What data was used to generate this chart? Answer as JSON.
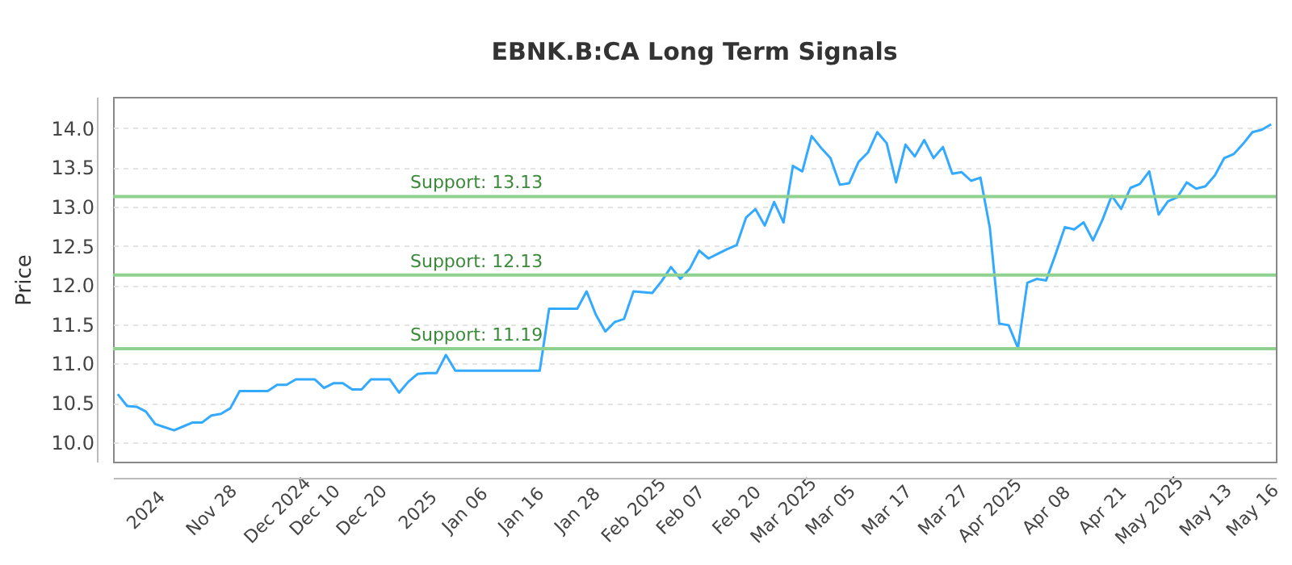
{
  "chart_data": {
    "type": "line",
    "title": "EBNK.B:CA Long Term Signals",
    "ylabel": "Price",
    "categories": [
      null,
      null,
      null,
      "2024",
      null,
      null,
      null,
      null,
      null,
      null,
      "Nov 28",
      null,
      null,
      null,
      null,
      null,
      null,
      "Dec 2024",
      null,
      null,
      null,
      "Dec 10",
      null,
      null,
      null,
      null,
      "Dec 20",
      null,
      null,
      null,
      null,
      null,
      "2025",
      null,
      null,
      null,
      null,
      "Jan 06",
      null,
      null,
      null,
      null,
      null,
      "Jan 16",
      null,
      null,
      null,
      null,
      null,
      "Jan 28",
      null,
      null,
      null,
      null,
      null,
      "Feb 2025",
      null,
      null,
      null,
      null,
      "Feb 07",
      null,
      null,
      null,
      null,
      null,
      "Feb 20",
      null,
      null,
      null,
      null,
      "Mar 2025",
      null,
      null,
      null,
      null,
      "Mar 05",
      null,
      null,
      null,
      null,
      null,
      "Mar 17",
      null,
      null,
      null,
      null,
      null,
      "Mar 27",
      null,
      null,
      null,
      null,
      "Apr 2025",
      null,
      null,
      null,
      null,
      null,
      "Apr 08",
      null,
      null,
      null,
      null,
      null,
      "Apr 21",
      null,
      null,
      null,
      null,
      "May 2025",
      null,
      null,
      null,
      null,
      null,
      "May 13",
      null,
      null,
      null,
      null,
      "May 16",
      null,
      null
    ],
    "series": [
      {
        "color": "#33aaff",
        "values": [
          10.61,
          10.46,
          10.45,
          10.39,
          10.23,
          10.19,
          10.15,
          10.2,
          10.25,
          10.25,
          10.34,
          10.36,
          10.43,
          10.65,
          10.65,
          10.65,
          10.65,
          10.73,
          10.73,
          10.8,
          10.8,
          10.8,
          10.69,
          10.75,
          10.75,
          10.67,
          10.67,
          10.8,
          10.8,
          10.8,
          10.63,
          10.77,
          10.87,
          10.88,
          10.88,
          11.11,
          10.91,
          10.91,
          10.91,
          10.91,
          10.91,
          10.91,
          10.91,
          10.91,
          10.91,
          10.91,
          11.7,
          11.7,
          11.7,
          11.7,
          11.92,
          11.62,
          11.41,
          11.53,
          11.57,
          11.92,
          11.91,
          11.9,
          12.05,
          12.23,
          12.08,
          12.21,
          12.44,
          12.34,
          12.4,
          12.46,
          12.51,
          12.86,
          12.97,
          12.76,
          13.06,
          12.8,
          13.52,
          13.45,
          13.9,
          13.75,
          13.62,
          13.28,
          13.3,
          13.57,
          13.69,
          13.95,
          13.81,
          13.31,
          13.79,
          13.64,
          13.85,
          13.62,
          13.76,
          13.42,
          13.44,
          13.33,
          13.37,
          12.73,
          11.51,
          11.49,
          11.2,
          12.03,
          12.08,
          12.06,
          12.39,
          12.74,
          12.71,
          12.8,
          12.57,
          12.83,
          13.14,
          12.97,
          13.24,
          13.29,
          13.45,
          12.9,
          13.07,
          13.12,
          13.31,
          13.23,
          13.26,
          13.4,
          13.62,
          13.67,
          13.8,
          13.95,
          13.98,
          14.05
        ]
      }
    ],
    "ylim": [
      9.75,
      14.4
    ],
    "yticks": [
      {
        "value": 10,
        "label": "10.0"
      },
      {
        "value": 10.5,
        "label": "10.5"
      },
      {
        "value": 11,
        "label": "11.0"
      },
      {
        "value": 11.5,
        "label": "11.5"
      },
      {
        "value": 12,
        "label": "12.0"
      },
      {
        "value": 12.5,
        "label": "12.5"
      },
      {
        "value": 13,
        "label": "13.0"
      },
      {
        "value": 13.5,
        "label": "13.5"
      },
      {
        "value": 14,
        "label": "14.0"
      }
    ],
    "grid": "y",
    "ref_lines": [
      {
        "axis": "y",
        "value": 13.13,
        "label": "Support: 13.13",
        "color": "#8fd18f"
      },
      {
        "axis": "y",
        "value": 12.13,
        "label": "Support: 12.13",
        "color": "#8fd18f"
      },
      {
        "axis": "y",
        "value": 11.19,
        "label": "Support: 11.19",
        "color": "#8fd18f"
      }
    ]
  }
}
